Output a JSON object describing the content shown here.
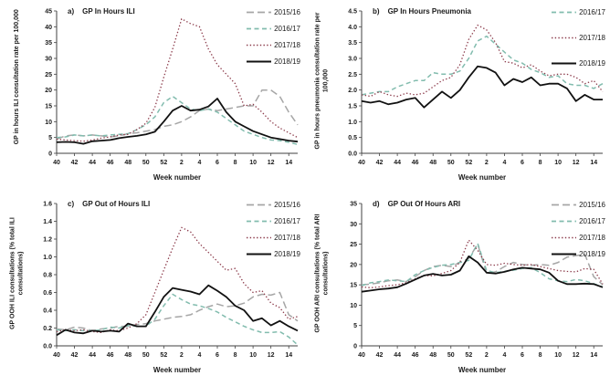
{
  "page": {
    "background": "#ffffff",
    "xlabel": "Week number"
  },
  "palette": {
    "s2015_16": "#a6a6a6",
    "s2016_17": "#82bcae",
    "s2017_18": "#8b3a4a",
    "s2018_19": "#111111",
    "axis": "#404040"
  },
  "chart_data": [
    {
      "type": "line",
      "panel_label": "a)",
      "title": "GP In Hours ILI",
      "ylabel": "GP in hours ILI consultation rate per 100,000",
      "xlabel": "Week number",
      "ylim": [
        0,
        45
      ],
      "yticks": [
        0,
        5,
        10,
        15,
        20,
        25,
        30,
        35,
        40,
        45
      ],
      "ytick_labels": [
        "0",
        "5",
        "10",
        "15",
        "20",
        "25",
        "30",
        "35",
        "40",
        "45"
      ],
      "weeks": [
        40,
        41,
        42,
        43,
        44,
        45,
        46,
        47,
        48,
        49,
        50,
        51,
        52,
        1,
        2,
        3,
        4,
        5,
        6,
        7,
        8,
        9,
        10,
        11,
        12,
        13,
        14,
        15
      ],
      "xtick_labels": [
        "40",
        "42",
        "44",
        "46",
        "48",
        "50",
        "52",
        "2",
        "4",
        "6",
        "8",
        "10",
        "12",
        "14"
      ],
      "legend_position": "top-right",
      "grid": false,
      "series": [
        {
          "name": "2015/16",
          "color": "#a6a6a6",
          "dash": "long-dash",
          "values": [
            4.5,
            5.5,
            5.8,
            5.5,
            5.8,
            5.5,
            5.2,
            5.5,
            6.2,
            6.5,
            7.0,
            7.5,
            8.5,
            9.0,
            10.0,
            11.5,
            13.5,
            14.0,
            13.5,
            14.0,
            14.5,
            15.0,
            15.0,
            20.0,
            20.0,
            18.0,
            13.0,
            9.0
          ]
        },
        {
          "name": "2016/17",
          "color": "#82bcae",
          "dash": "dash",
          "values": [
            5.0,
            5.2,
            5.8,
            5.5,
            5.8,
            5.5,
            5.8,
            6.0,
            6.2,
            7.5,
            9.0,
            11.5,
            16.0,
            18.0,
            16.0,
            14.0,
            13.5,
            14.0,
            13.0,
            11.0,
            9.0,
            7.0,
            6.0,
            5.0,
            4.2,
            4.0,
            3.5,
            2.8
          ]
        },
        {
          "name": "2017/18",
          "color": "#8b3a4a",
          "dash": "dot",
          "values": [
            4.5,
            4.2,
            4.0,
            3.8,
            4.2,
            4.8,
            5.2,
            5.8,
            6.0,
            7.5,
            9.5,
            14.5,
            24.0,
            33.0,
            42.5,
            41.0,
            40.0,
            33.0,
            28.0,
            25.0,
            22.0,
            15.0,
            15.5,
            13.0,
            10.0,
            8.0,
            6.5,
            5.0
          ]
        },
        {
          "name": "2018/19",
          "color": "#111111",
          "dash": "solid",
          "values": [
            3.5,
            3.6,
            3.5,
            3.0,
            3.8,
            4.0,
            4.2,
            4.8,
            5.2,
            5.5,
            6.0,
            6.8,
            10.0,
            13.5,
            15.0,
            13.5,
            13.8,
            14.8,
            17.3,
            13.0,
            10.0,
            8.5,
            7.0,
            6.0,
            5.0,
            4.5,
            4.0,
            3.7
          ]
        }
      ]
    },
    {
      "type": "line",
      "panel_label": "b)",
      "title": "GP In Hours Pneumonia",
      "ylabel": "GP in hours pneumonia consultation rate per 100,000",
      "xlabel": "Week number",
      "ylim": [
        0,
        4.5
      ],
      "yticks": [
        0,
        0.5,
        1.0,
        1.5,
        2.0,
        2.5,
        3.0,
        3.5,
        4.0,
        4.5
      ],
      "ytick_labels": [
        "0.0",
        "0.5",
        "1.0",
        "1.5",
        "2.0",
        "2.5",
        "3.0",
        "3.5",
        "4.0",
        "4.5"
      ],
      "weeks": [
        40,
        41,
        42,
        43,
        44,
        45,
        46,
        47,
        48,
        49,
        50,
        51,
        52,
        1,
        2,
        3,
        4,
        5,
        6,
        7,
        8,
        9,
        10,
        11,
        12,
        13,
        14,
        15
      ],
      "xtick_labels": [
        "40",
        "42",
        "44",
        "46",
        "48",
        "50",
        "52",
        "2",
        "4",
        "6",
        "8",
        "10",
        "12",
        "14"
      ],
      "legend_position": "top-right",
      "grid": false,
      "series": [
        {
          "name": "2016/17",
          "color": "#82bcae",
          "dash": "dash",
          "values": [
            1.85,
            1.9,
            1.95,
            1.95,
            2.1,
            2.2,
            2.3,
            2.3,
            2.55,
            2.5,
            2.5,
            2.6,
            3.0,
            3.55,
            3.7,
            3.45,
            3.2,
            2.95,
            2.85,
            2.65,
            2.55,
            2.4,
            2.45,
            2.2,
            2.15,
            2.15,
            2.05,
            2.2
          ]
        },
        {
          "name": "2017/18",
          "color": "#8b3a4a",
          "dash": "dot",
          "values": [
            1.85,
            1.8,
            1.95,
            1.85,
            1.8,
            1.9,
            1.85,
            1.9,
            2.1,
            2.3,
            2.4,
            2.8,
            3.6,
            4.05,
            3.9,
            3.5,
            2.9,
            2.85,
            2.7,
            2.8,
            2.6,
            2.45,
            2.5,
            2.5,
            2.4,
            2.2,
            2.3,
            1.95
          ]
        },
        {
          "name": "2018/19",
          "color": "#111111",
          "dash": "solid",
          "values": [
            1.65,
            1.6,
            1.65,
            1.55,
            1.6,
            1.7,
            1.75,
            1.45,
            1.7,
            1.95,
            1.75,
            2.0,
            2.4,
            2.75,
            2.7,
            2.55,
            2.15,
            2.35,
            2.25,
            2.4,
            2.15,
            2.2,
            2.2,
            2.05,
            1.65,
            1.85,
            1.7,
            1.7
          ]
        }
      ]
    },
    {
      "type": "line",
      "panel_label": "c)",
      "title": "GP Out of Hours ILI",
      "ylabel": "GP OOH ILI consultations (% total ILI consultations)",
      "xlabel": "Week number",
      "ylim": [
        0,
        1.6
      ],
      "yticks": [
        0,
        0.2,
        0.4,
        0.6,
        0.8,
        1.0,
        1.2,
        1.4,
        1.6
      ],
      "ytick_labels": [
        "0.0",
        "0.2",
        "0.4",
        "0.6",
        "0.8",
        "1.0",
        "1.2",
        "1.4",
        "1.6"
      ],
      "weeks": [
        40,
        41,
        42,
        43,
        44,
        45,
        46,
        47,
        48,
        49,
        50,
        51,
        52,
        1,
        2,
        3,
        4,
        5,
        6,
        7,
        8,
        9,
        10,
        11,
        12,
        13,
        14,
        15
      ],
      "xtick_labels": [
        "40",
        "42",
        "44",
        "46",
        "48",
        "50",
        "52",
        "2",
        "4",
        "6",
        "8",
        "10",
        "12",
        "14"
      ],
      "legend_position": "top-right",
      "grid": false,
      "series": [
        {
          "name": "2015/16",
          "color": "#a6a6a6",
          "dash": "long-dash",
          "values": [
            0.19,
            0.18,
            0.21,
            0.2,
            0.17,
            0.19,
            0.2,
            0.22,
            0.22,
            0.24,
            0.25,
            0.28,
            0.3,
            0.32,
            0.33,
            0.35,
            0.4,
            0.44,
            0.47,
            0.44,
            0.45,
            0.48,
            0.55,
            0.58,
            0.57,
            0.6,
            0.35,
            0.28
          ]
        },
        {
          "name": "2016/17",
          "color": "#82bcae",
          "dash": "dash",
          "values": [
            0.18,
            0.17,
            0.18,
            0.17,
            0.17,
            0.18,
            0.21,
            0.2,
            0.23,
            0.22,
            0.22,
            0.3,
            0.45,
            0.58,
            0.52,
            0.47,
            0.45,
            0.42,
            0.38,
            0.32,
            0.27,
            0.22,
            0.18,
            0.15,
            0.15,
            0.16,
            0.1,
            0.01
          ]
        },
        {
          "name": "2017/18",
          "color": "#8b3a4a",
          "dash": "dot",
          "values": [
            0.16,
            0.18,
            0.17,
            0.18,
            0.16,
            0.15,
            0.18,
            0.17,
            0.2,
            0.25,
            0.35,
            0.6,
            0.85,
            1.1,
            1.33,
            1.28,
            1.15,
            1.05,
            0.95,
            0.85,
            0.87,
            0.7,
            0.6,
            0.62,
            0.48,
            0.43,
            0.3,
            0.33
          ]
        },
        {
          "name": "2018/19",
          "color": "#111111",
          "dash": "solid",
          "values": [
            0.12,
            0.18,
            0.15,
            0.14,
            0.17,
            0.16,
            0.17,
            0.16,
            0.25,
            0.22,
            0.22,
            0.38,
            0.55,
            0.65,
            0.63,
            0.61,
            0.58,
            0.68,
            0.62,
            0.55,
            0.45,
            0.4,
            0.28,
            0.31,
            0.23,
            0.28,
            0.22,
            0.17
          ]
        }
      ]
    },
    {
      "type": "line",
      "panel_label": "d)",
      "title": "GP Out Of Hours ARI",
      "ylabel": "GP OOH ARI consultations (% total ARI consultations)",
      "xlabel": "Week number",
      "ylim": [
        0,
        35
      ],
      "yticks": [
        0,
        5,
        10,
        15,
        20,
        25,
        30,
        35
      ],
      "ytick_labels": [
        "0",
        "5",
        "10",
        "15",
        "20",
        "25",
        "30",
        "35"
      ],
      "weeks": [
        40,
        41,
        42,
        43,
        44,
        45,
        46,
        47,
        48,
        49,
        50,
        51,
        52,
        1,
        2,
        3,
        4,
        5,
        6,
        7,
        8,
        9,
        10,
        11,
        12,
        13,
        14,
        15
      ],
      "xtick_labels": [
        "40",
        "42",
        "44",
        "46",
        "48",
        "50",
        "52",
        "2",
        "4",
        "6",
        "8",
        "10",
        "12",
        "14"
      ],
      "legend_position": "top-right",
      "grid": false,
      "series": [
        {
          "name": "2015/16",
          "color": "#a6a6a6",
          "dash": "long-dash",
          "values": [
            15.0,
            15.2,
            15.5,
            16.0,
            16.2,
            15.8,
            17.0,
            18.5,
            19.5,
            19.8,
            19.5,
            20.5,
            21.5,
            25.0,
            17.8,
            18.2,
            19.5,
            20.5,
            20.0,
            19.8,
            20.0,
            19.8,
            20.5,
            21.8,
            22.2,
            22.5,
            17.0,
            15.0
          ]
        },
        {
          "name": "2016/17",
          "color": "#82bcae",
          "dash": "dash",
          "values": [
            14.8,
            15.5,
            15.8,
            16.2,
            16.0,
            15.8,
            17.5,
            18.5,
            19.3,
            19.8,
            20.0,
            20.5,
            21.0,
            25.2,
            18.5,
            18.0,
            18.3,
            18.6,
            19.0,
            19.2,
            18.0,
            16.5,
            16.0,
            15.8,
            16.3,
            16.0,
            15.3,
            14.5
          ]
        },
        {
          "name": "2017/18",
          "color": "#8b3a4a",
          "dash": "dot",
          "values": [
            14.5,
            14.3,
            14.5,
            14.8,
            15.0,
            15.5,
            16.5,
            17.3,
            17.2,
            17.8,
            18.5,
            20.5,
            26.0,
            23.5,
            20.0,
            19.8,
            20.3,
            20.0,
            19.8,
            20.0,
            19.5,
            19.0,
            18.5,
            18.3,
            18.2,
            19.0,
            18.8,
            15.2
          ]
        },
        {
          "name": "2018/19",
          "color": "#111111",
          "dash": "solid",
          "values": [
            13.3,
            13.6,
            13.9,
            14.1,
            14.4,
            15.3,
            16.3,
            17.3,
            17.7,
            17.3,
            17.5,
            18.5,
            22.0,
            20.5,
            18.0,
            17.8,
            18.2,
            18.8,
            19.2,
            19.0,
            18.8,
            18.0,
            16.0,
            15.2,
            15.2,
            15.3,
            15.2,
            14.4
          ]
        }
      ]
    }
  ]
}
